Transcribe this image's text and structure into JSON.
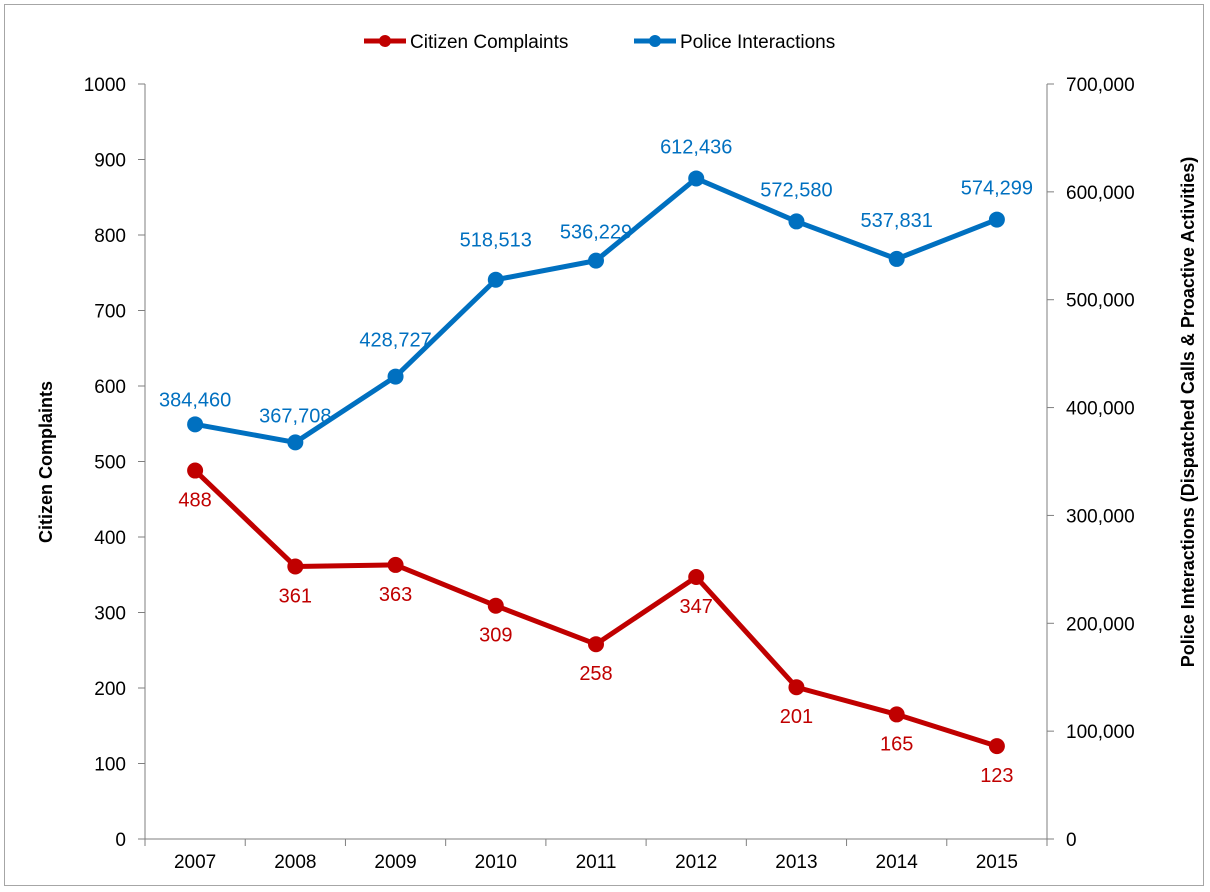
{
  "chart_data": {
    "type": "line",
    "title": "",
    "categories": [
      "2007",
      "2008",
      "2009",
      "2010",
      "2011",
      "2012",
      "2013",
      "2014",
      "2015"
    ],
    "series": [
      {
        "name": "Citizen Complaints",
        "axis": "left",
        "color": "#c00000",
        "values": [
          488,
          361,
          363,
          309,
          258,
          347,
          201,
          165,
          123
        ],
        "labels": [
          "488",
          "361",
          "363",
          "309",
          "258",
          "347",
          "201",
          "165",
          "123"
        ]
      },
      {
        "name": "Police Interactions",
        "axis": "right",
        "color": "#0070c0",
        "values": [
          384460,
          367708,
          428727,
          518513,
          536229,
          612436,
          572580,
          537831,
          574299
        ],
        "labels": [
          "384,460",
          "367,708",
          "428,727",
          "518,513",
          "536,229",
          "612,436",
          "572,580",
          "537,831",
          "574,299"
        ]
      }
    ],
    "ylabel": "Citizen Complaints",
    "ylabel_right": "Police Interactions (Dispatched Calls & Proactive Activities)",
    "ylim": [
      0,
      1000
    ],
    "ylim_right": [
      0,
      700000
    ],
    "yticks": [
      "0",
      "100",
      "200",
      "300",
      "400",
      "500",
      "600",
      "700",
      "800",
      "900",
      "1000"
    ],
    "yticks_right": [
      "0",
      "100,000",
      "200,000",
      "300,000",
      "400,000",
      "500,000",
      "600,000",
      "700,000"
    ],
    "grid": false,
    "legend_position": "top-center"
  }
}
